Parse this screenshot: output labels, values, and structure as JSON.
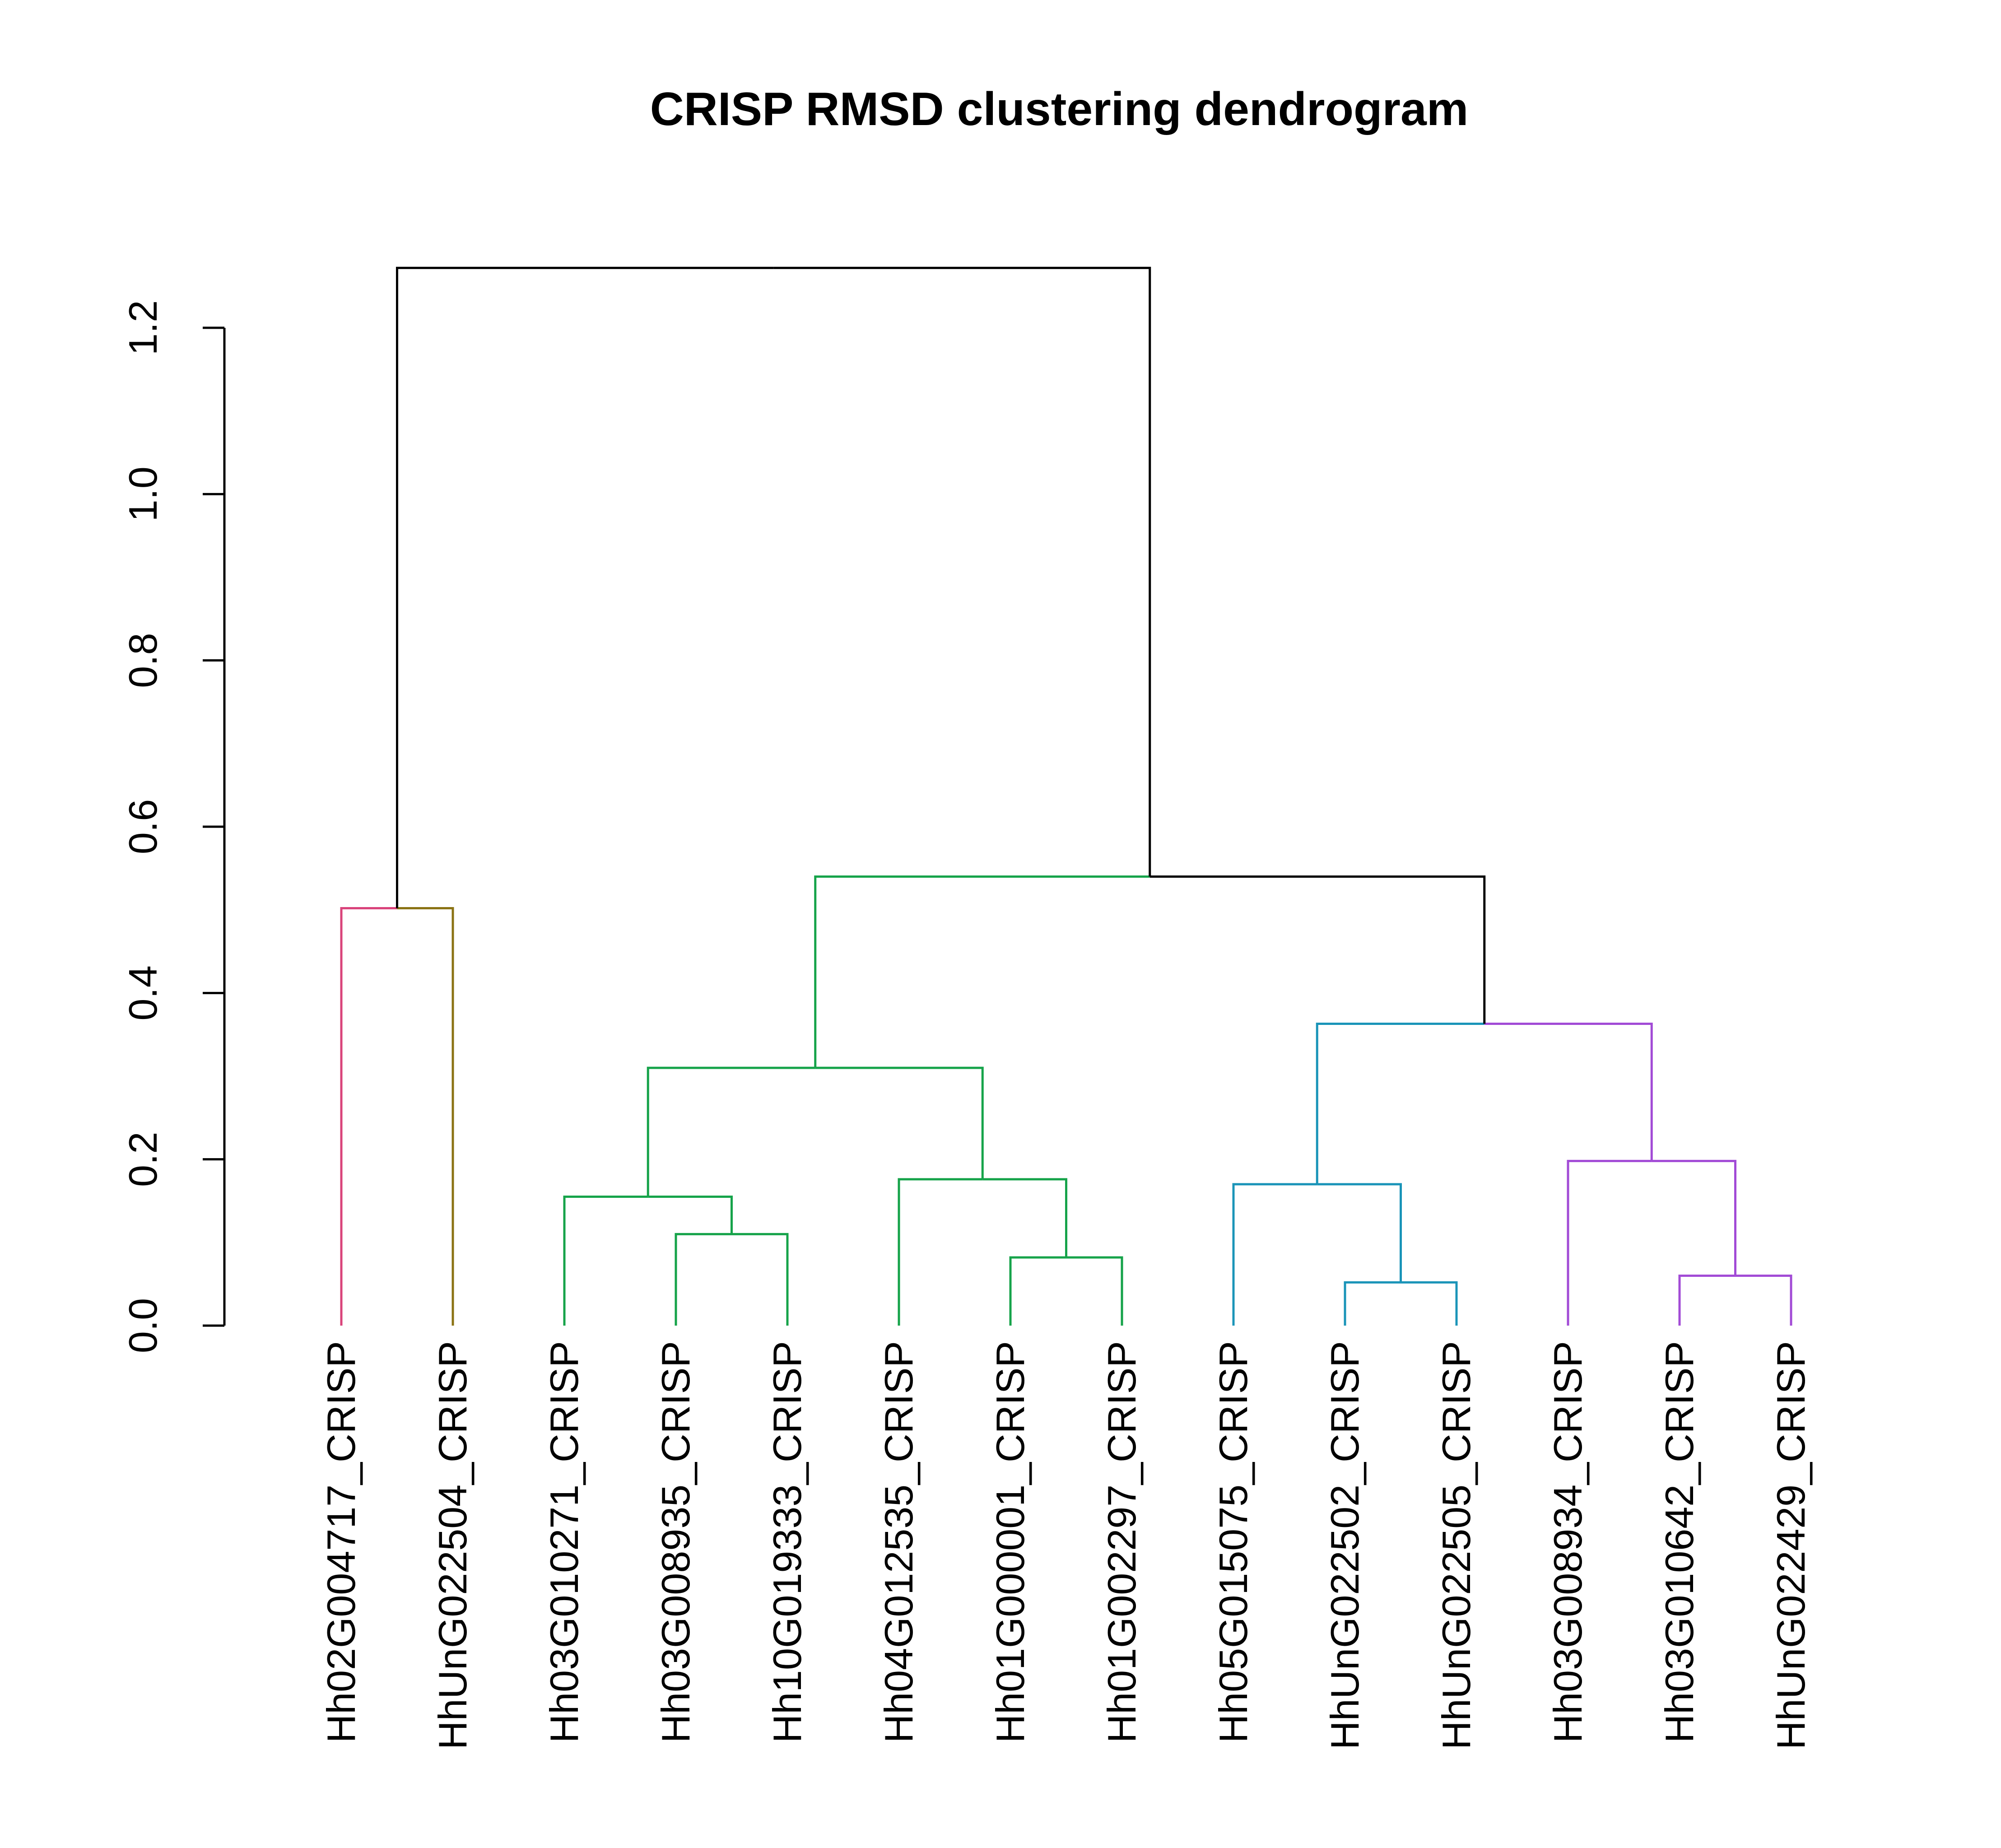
{
  "chart_data": {
    "type": "dendrogram",
    "title": "CRISP RMSD clustering dendrogram",
    "xlabel": "",
    "ylabel": "",
    "ylim": [
      0,
      1.2
    ],
    "y_ticks": [
      "0.0",
      "0.2",
      "0.4",
      "0.6",
      "0.8",
      "1.0",
      "1.2"
    ],
    "leaves": [
      "Hh02G004717_CRISP",
      "HhUnG022504_CRISP",
      "Hh03G010271_CRISP",
      "Hh03G008935_CRISP",
      "Hh10G019333_CRISP",
      "Hh04G012535_CRISP",
      "Hh01G000001_CRISP",
      "Hh01G002297_CRISP",
      "Hh05G015075_CRISP",
      "HhUnG022502_CRISP",
      "HhUnG022505_CRISP",
      "Hh03G008934_CRISP",
      "Hh03G010642_CRISP",
      "HhUnG022429_CRISP"
    ],
    "leaf_colors": [
      "#D9447B",
      "#8B7314",
      "#16A34A",
      "#16A34A",
      "#16A34A",
      "#16A34A",
      "#16A34A",
      "#16A34A",
      "#1A94B8",
      "#1A94B8",
      "#1A94B8",
      "#A24BD6",
      "#A24BD6",
      "#A24BD6"
    ],
    "merges": [
      {
        "a": "L9",
        "b": "L10",
        "height": 0.052,
        "color": "#1A94B8"
      },
      {
        "a": "L12",
        "b": "L13",
        "height": 0.06,
        "color": "#A24BD6"
      },
      {
        "a": "L6",
        "b": "L7",
        "height": 0.082,
        "color": "#16A34A"
      },
      {
        "a": "L3",
        "b": "L4",
        "height": 0.11,
        "color": "#16A34A"
      },
      {
        "a": "L2",
        "b": "N3",
        "height": 0.155,
        "color": "#16A34A"
      },
      {
        "a": "L8",
        "b": "N0",
        "height": 0.17,
        "color": "#1A94B8"
      },
      {
        "a": "L5",
        "b": "N2",
        "height": 0.176,
        "color": "#16A34A"
      },
      {
        "a": "L11",
        "b": "N1",
        "height": 0.198,
        "color": "#A24BD6"
      },
      {
        "a": "N4",
        "b": "N6",
        "height": 0.31,
        "color": "#16A34A"
      },
      {
        "a": "N5",
        "b": "N7",
        "height": 0.363,
        "left_color": "#1A94B8",
        "right_color": "#A24BD6"
      },
      {
        "a": "L0",
        "b": "L1",
        "height": 0.502,
        "left_color": "#D9447B",
        "right_color": "#8B7314"
      },
      {
        "a": "N8",
        "b": "N9",
        "height": 0.54,
        "left_color": "#16A34A",
        "right_color": "#000000"
      },
      {
        "a": "N10",
        "b": "N11",
        "height": 1.272,
        "color": "#000000"
      }
    ]
  }
}
